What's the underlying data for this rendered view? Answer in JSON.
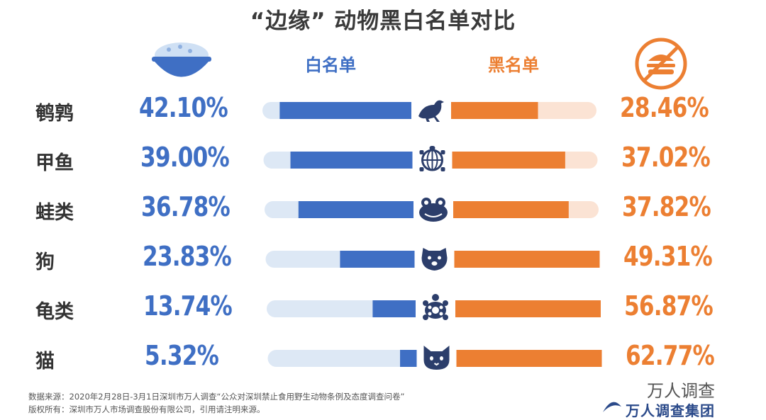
{
  "title": "“边缘” 动物黑白名单对比",
  "headers": {
    "whitelist": "白名单",
    "blacklist": "黑名单"
  },
  "icons": {
    "whitelist": "rice-bowl-icon",
    "blacklist": "no-food-icon",
    "rows": [
      "quail-icon",
      "turtle-icon",
      "frog-icon",
      "dog-icon",
      "tortoise-icon",
      "cat-icon"
    ]
  },
  "colors": {
    "white_main": "#3f6fc4",
    "white_track": "#dde8f5",
    "black_main": "#ec7f32",
    "black_track": "#fbe3d4",
    "icon_dark": "#2c3e6b"
  },
  "chart_data": {
    "type": "bar",
    "categories": [
      "鹌鹑",
      "甲鱼",
      "蛙类",
      "狗",
      "龟类",
      "猫"
    ],
    "series": [
      {
        "name": "白名单",
        "values": [
          42.1,
          39.0,
          36.78,
          23.83,
          13.74,
          5.32
        ],
        "labels": [
          "42.10%",
          "39.00%",
          "36.78%",
          "23.83%",
          "13.74%",
          "5.32%"
        ]
      },
      {
        "name": "黑名单",
        "values": [
          28.46,
          37.02,
          37.82,
          49.31,
          56.87,
          62.77
        ],
        "labels": [
          "28.46%",
          "37.02%",
          "37.82%",
          "49.31%",
          "56.87%",
          "62.77%"
        ]
      }
    ],
    "ylim": [
      0,
      100
    ]
  },
  "footer": {
    "source": "数据来源：2020年2月28日-3月1日深圳市万人调查“公众对深圳禁止食用野生动物条例及态度调查问卷”",
    "copyright": "版权所有：深圳市万人市场调查股份有限公司，引用请注明来源。"
  },
  "logo_text": "万人调查集团",
  "watermark": "万人调查"
}
